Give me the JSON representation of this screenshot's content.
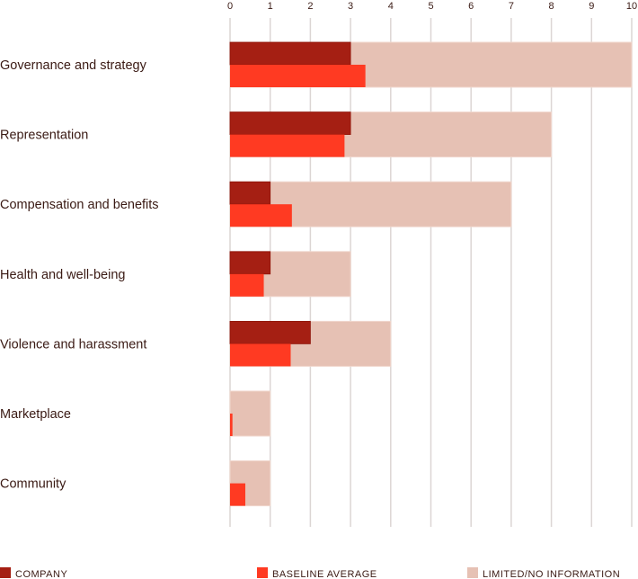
{
  "chart_data": {
    "type": "bar",
    "orientation": "horizontal",
    "categories": [
      "Governance and strategy",
      "Representation",
      "Compensation and benefits",
      "Health and well-being",
      "Violence and harassment",
      "Marketplace",
      "Community"
    ],
    "series": [
      {
        "name": "COMPANY",
        "color": "#a51f13",
        "values": [
          3,
          3,
          1,
          1,
          2,
          0,
          0
        ]
      },
      {
        "name": "BASELINE AVERAGE",
        "color": "#ff3a22",
        "values": [
          3.37,
          2.85,
          1.54,
          0.84,
          1.51,
          0.06,
          0.38
        ]
      },
      {
        "name": "LIMITED/NO INFORMATION",
        "color": "#e6c1b4",
        "values": [
          10,
          8,
          7,
          3,
          4,
          1,
          1
        ]
      }
    ],
    "xlim": [
      0,
      10
    ],
    "xticks": [
      "0",
      "1",
      "2",
      "3",
      "4",
      "5",
      "6",
      "7",
      "8",
      "9",
      "10"
    ],
    "grid": true,
    "legend_position": "bottom",
    "title": "",
    "xlabel": "",
    "ylabel": ""
  }
}
